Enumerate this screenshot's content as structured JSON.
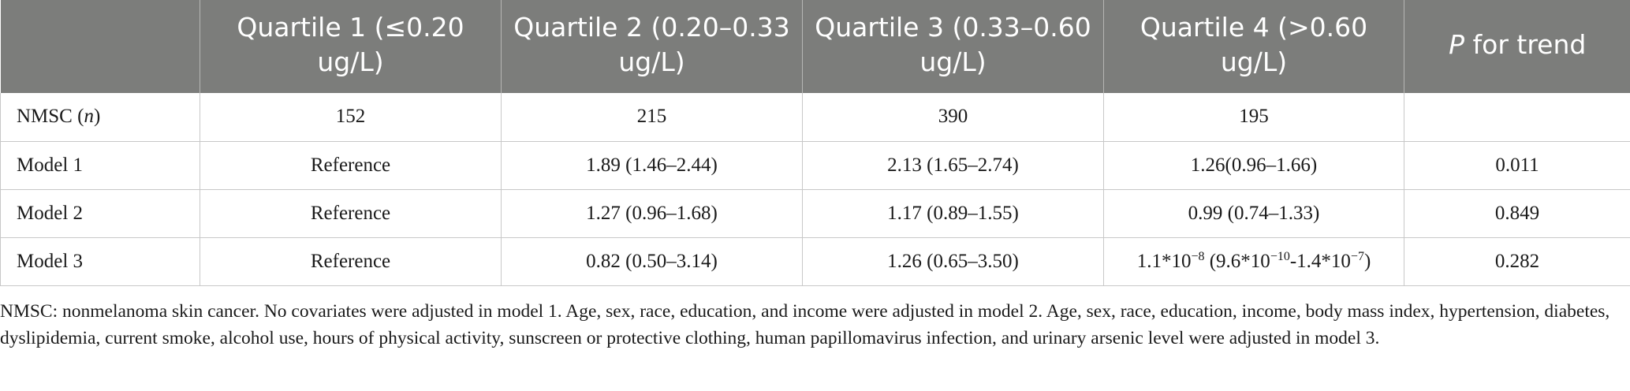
{
  "table": {
    "header": {
      "blank": "",
      "q1": "Quartile 1 (≤0.20 ug/L)",
      "q2": "Quartile 2 (0.20–0.33 ug/L)",
      "q3": "Quartile 3 (0.33–0.60 ug/L)",
      "q4": "Quartile 4 (>0.60 ug/L)",
      "p_italic": "P",
      "p_rest": " for trend"
    },
    "rows": {
      "nmsc": {
        "label": "NMSC (",
        "label_n": "n",
        "label_close": ")",
        "q1": "152",
        "q2": "215",
        "q3": "390",
        "q4": "195",
        "p": ""
      },
      "model1": {
        "label": "Model 1",
        "q1": "Reference",
        "q2": "1.89 (1.46–2.44)",
        "q3": "2.13 (1.65–2.74)",
        "q4": "1.26(0.96–1.66)",
        "p": "0.011"
      },
      "model2": {
        "label": "Model 2",
        "q1": "Reference",
        "q2": "1.27 (0.96–1.68)",
        "q3": "1.17 (0.89–1.55)",
        "q4": "0.99 (0.74–1.33)",
        "p": "0.849"
      },
      "model3": {
        "label": "Model 3",
        "q1": "Reference",
        "q2": "0.82 (0.50–3.14)",
        "q3": "1.26 (0.65–3.50)",
        "q4": {
          "a": "1.1*10",
          "a_exp": "−8",
          "b": " (9.6*10",
          "b_exp": "−10",
          "c": "-1.4*10",
          "c_exp": "−7",
          "d": ")"
        },
        "p": "0.282"
      }
    }
  },
  "footnote": "NMSC: nonmelanoma skin cancer. No covariates were adjusted in model 1. Age, sex, race, education, and income were adjusted in model 2. Age, sex, race, education, income, body mass index, hypertension, diabetes, dyslipidemia, current smoke, alcohol use, hours of physical activity, sunscreen or protective clothing, human papillomavirus infection, and urinary arsenic level were adjusted in model 3."
}
